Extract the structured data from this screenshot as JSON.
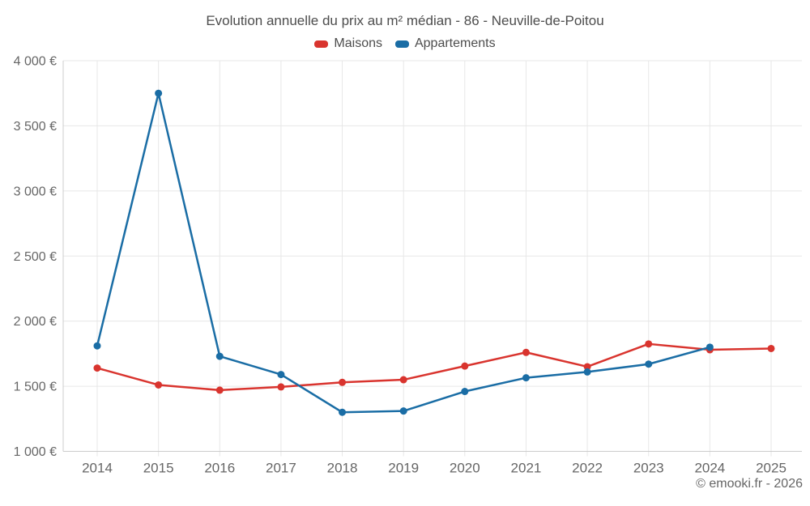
{
  "header": {
    "title": "Evolution annuelle du prix au m² médian - 86 - Neuville-de-Poitou"
  },
  "footer": {
    "copyright": "© emooki.fr - 2026"
  },
  "colors": {
    "maisons": "#d9342e",
    "appartements": "#1a6da5",
    "grid": "#e7e7e7",
    "axis": "#cccccc",
    "tick_text": "#666666",
    "title_text": "#4d4d4d"
  },
  "chart_data": {
    "type": "line",
    "title": "Evolution annuelle du prix au m² médian - 86 - Neuville-de-Poitou",
    "xlabel": "",
    "ylabel": "",
    "x": [
      2014,
      2015,
      2016,
      2017,
      2018,
      2019,
      2020,
      2021,
      2022,
      2023,
      2024,
      2025
    ],
    "series": [
      {
        "name": "Maisons",
        "color": "#d9342e",
        "values": [
          1640,
          1510,
          1470,
          1495,
          1530,
          1550,
          1655,
          1760,
          1650,
          1825,
          1780,
          1790
        ]
      },
      {
        "name": "Appartements",
        "color": "#1a6da5",
        "values": [
          1810,
          3750,
          1730,
          1590,
          1300,
          1310,
          1460,
          1565,
          1610,
          1670,
          1800,
          null
        ]
      }
    ],
    "ylim": [
      1000,
      4000
    ],
    "y_ticks": [
      1000,
      1500,
      2000,
      2500,
      3000,
      3500,
      4000
    ],
    "y_tick_labels": [
      "1 000 €",
      "1 500 €",
      "2 000 €",
      "2 500 €",
      "3 000 €",
      "3 500 €",
      "4 000 €"
    ],
    "x_tick_labels": [
      "2014",
      "2015",
      "2016",
      "2017",
      "2018",
      "2019",
      "2020",
      "2021",
      "2022",
      "2023",
      "2024",
      "2025"
    ],
    "currency": "€",
    "grid": true,
    "legend_position": "top",
    "marker_radius": 4.5,
    "line_width": 2.5
  }
}
